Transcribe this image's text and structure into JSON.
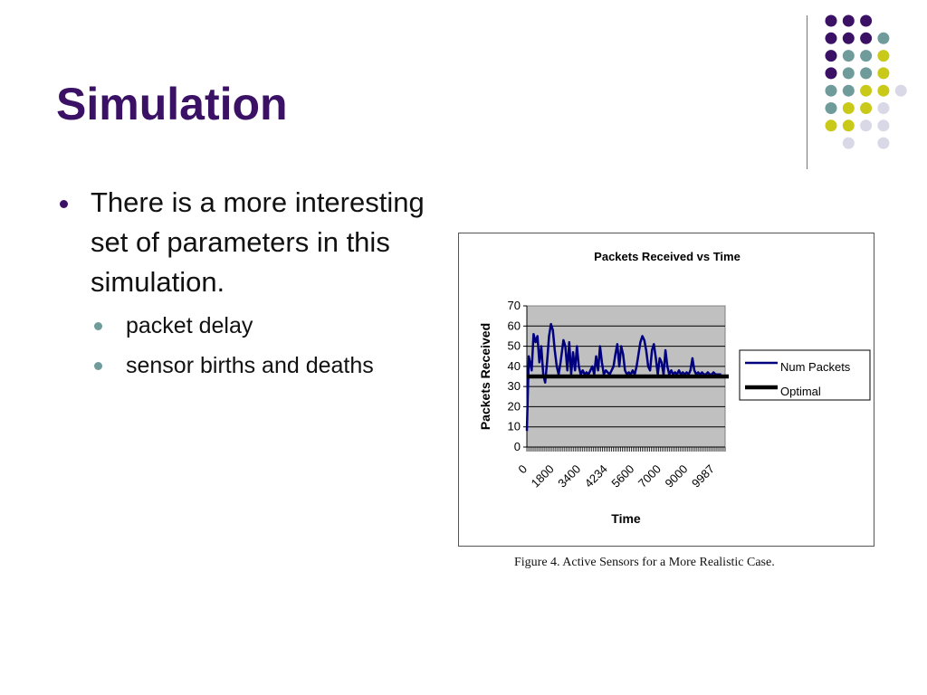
{
  "slide": {
    "title": "Simulation",
    "bullet": "There is a more interesting set of parameters in this simulation.",
    "sub_bullets": [
      "packet delay",
      "sensor births and deaths"
    ],
    "caption": "Figure 4.  Active Sensors for a More Realistic Case."
  },
  "colors": {
    "title": "#3b1166",
    "dot_palette": [
      "#3b1166",
      "#6f9b9b",
      "#c9c91a",
      "#d8d8e6"
    ],
    "num_packets_line": "#00007f",
    "optimal_line": "#000000",
    "plot_area": "#c0c0c0"
  },
  "chart_data": {
    "type": "line",
    "title": "Packets Received vs Time",
    "xlabel": "Time",
    "ylabel": "Packets Received",
    "ylim": [
      0,
      70
    ],
    "y_ticks": [
      0,
      10,
      20,
      30,
      40,
      50,
      60,
      70
    ],
    "x_range": [
      0,
      10300
    ],
    "x_tick_labels": [
      "0",
      "1800",
      "3400",
      "4234",
      "5600",
      "7000",
      "9000",
      "9987"
    ],
    "grid": true,
    "legend_position": "right",
    "series": [
      {
        "name": "Num Packets",
        "x": [
          0,
          100,
          250,
          350,
          450,
          550,
          650,
          750,
          850,
          950,
          1050,
          1150,
          1250,
          1350,
          1450,
          1550,
          1650,
          1750,
          1900,
          2000,
          2100,
          2200,
          2300,
          2400,
          2500,
          2600,
          2700,
          2800,
          2900,
          3000,
          3100,
          3200,
          3300,
          3400,
          3500,
          3600,
          3700,
          3800,
          3900,
          4000,
          4100,
          4200,
          4300,
          4400,
          4500,
          4600,
          4700,
          4800,
          4900,
          5000,
          5100,
          5200,
          5300,
          5400,
          5500,
          5600,
          5700,
          5800,
          5900,
          6000,
          6100,
          6200,
          6300,
          6400,
          6500,
          6600,
          6700,
          6800,
          6900,
          7000,
          7100,
          7200,
          7300,
          7400,
          7500,
          7600,
          7700,
          7800,
          7900,
          8000,
          8100,
          8200,
          8300,
          8400,
          8500,
          8600,
          8700,
          8800,
          8900,
          9000,
          9100,
          9200,
          9300,
          9400,
          9500,
          9600,
          9700,
          9800,
          9900,
          10000,
          10100
        ],
        "y": [
          8,
          45,
          38,
          56,
          52,
          55,
          42,
          50,
          36,
          32,
          42,
          55,
          61,
          58,
          48,
          40,
          36,
          42,
          53,
          50,
          38,
          52,
          36,
          47,
          38,
          50,
          40,
          36,
          38,
          36,
          37,
          36,
          38,
          40,
          36,
          45,
          38,
          50,
          42,
          36,
          38,
          37,
          36,
          38,
          40,
          46,
          51,
          40,
          50,
          46,
          38,
          36,
          37,
          36,
          38,
          36,
          40,
          46,
          52,
          55,
          53,
          48,
          40,
          38,
          48,
          51,
          44,
          36,
          44,
          42,
          36,
          48,
          40,
          36,
          38,
          36,
          37,
          36,
          38,
          36,
          37,
          36,
          37,
          36,
          38,
          44,
          38,
          36,
          37,
          36,
          37,
          36,
          36,
          37,
          36,
          36,
          37,
          36,
          36,
          36,
          36
        ]
      },
      {
        "name": "Optimal",
        "x": [
          0,
          10300
        ],
        "y": [
          35,
          35
        ]
      }
    ]
  }
}
